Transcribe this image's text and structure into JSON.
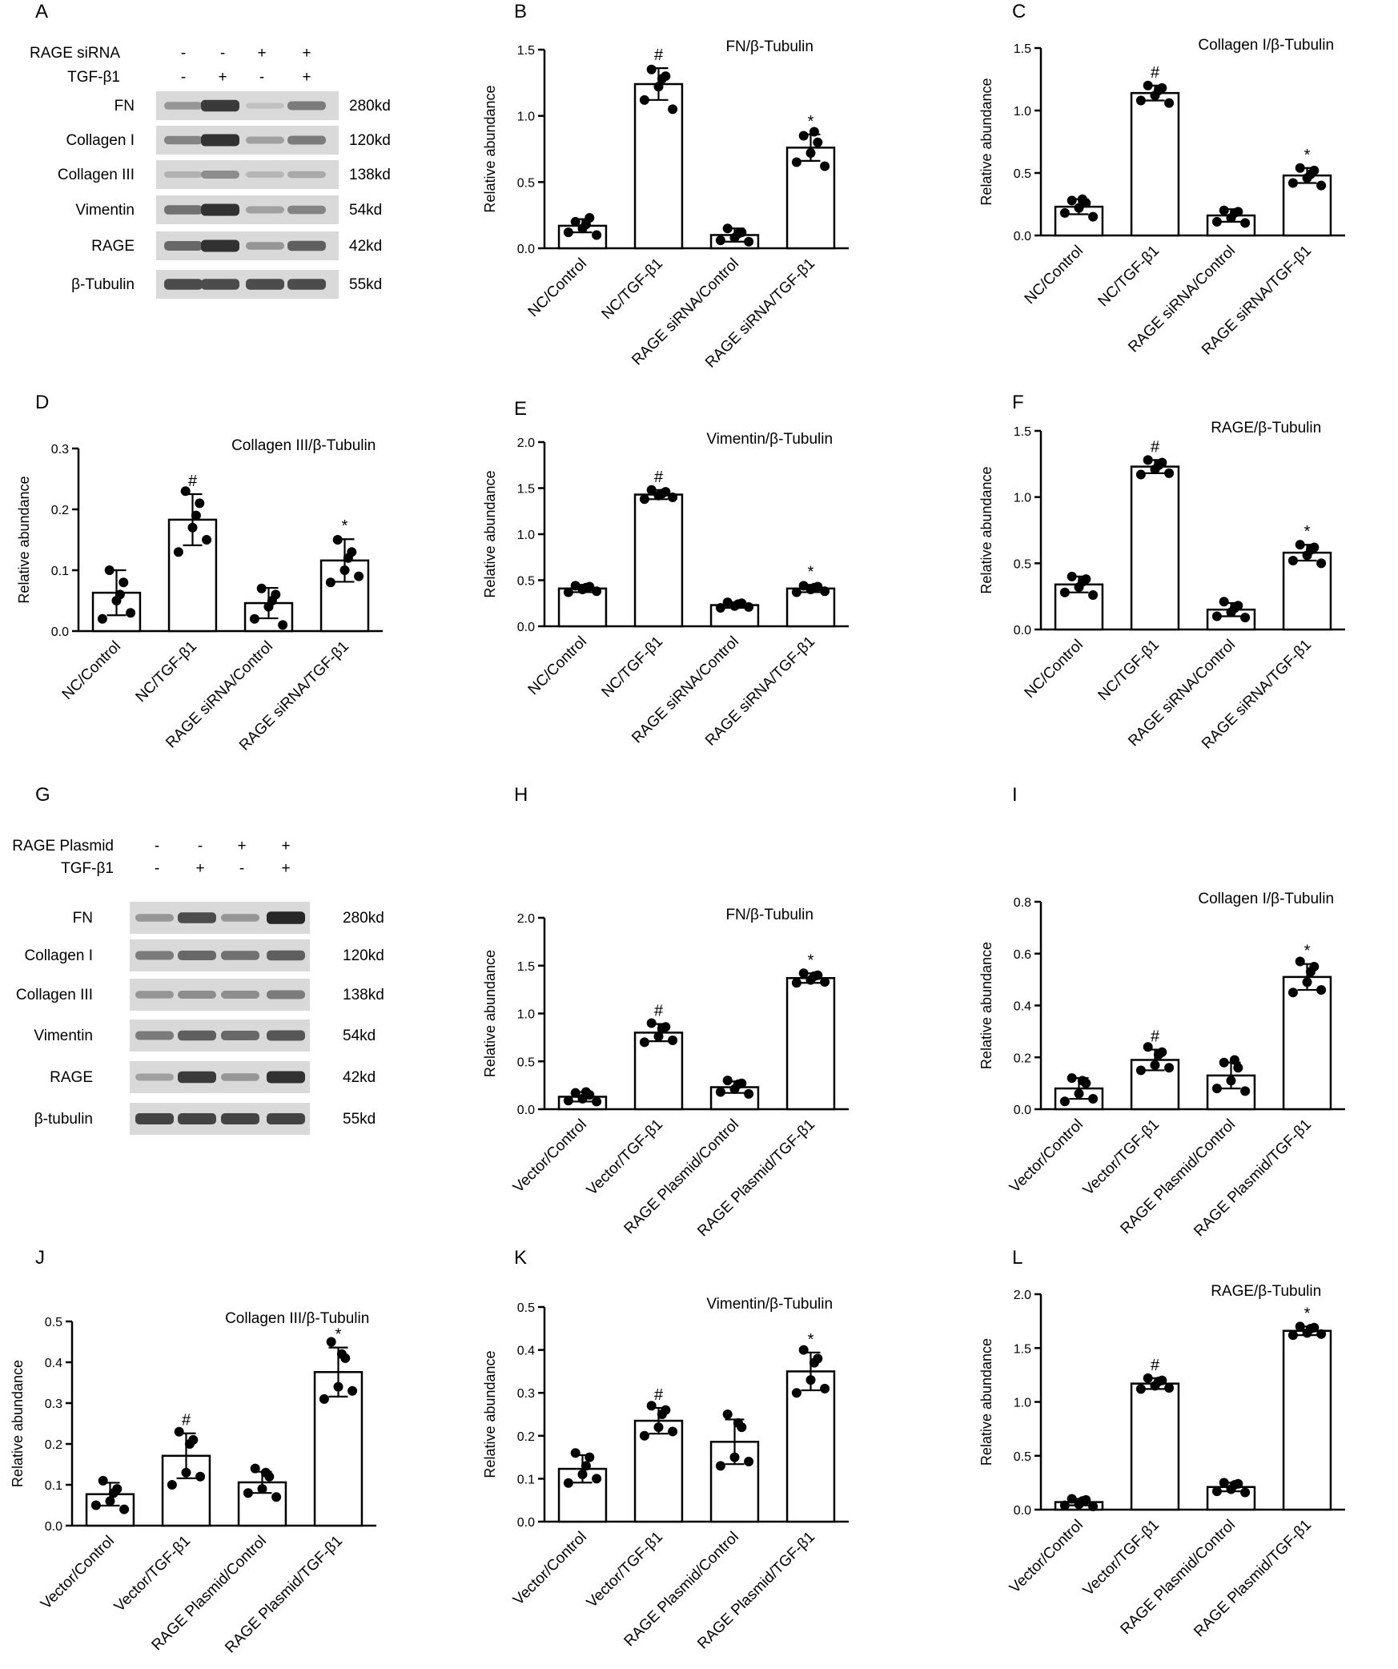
{
  "blots": [
    {
      "panel": "A",
      "header_rows": [
        {
          "label": "RAGE siRNA",
          "signs": [
            "-",
            "-",
            "+",
            "+"
          ]
        },
        {
          "label": "TGF-β1",
          "signs": [
            "-",
            "+",
            "-",
            "+"
          ]
        }
      ],
      "rows": [
        {
          "name": "FN",
          "kd": "280kd",
          "int": [
            0.35,
            0.85,
            0.12,
            0.5
          ]
        },
        {
          "name": "Collagen I",
          "kd": "120kd",
          "int": [
            0.45,
            0.9,
            0.3,
            0.5
          ]
        },
        {
          "name": "Collagen III",
          "kd": "138kd",
          "int": [
            0.2,
            0.4,
            0.18,
            0.25
          ]
        },
        {
          "name": "Vimentin",
          "kd": "54kd",
          "int": [
            0.55,
            0.9,
            0.3,
            0.45
          ]
        },
        {
          "name": "RAGE",
          "kd": "42kd",
          "int": [
            0.6,
            0.9,
            0.35,
            0.65
          ]
        },
        {
          "name": "β-Tubulin",
          "kd": "55kd",
          "int": [
            0.75,
            0.75,
            0.75,
            0.75
          ]
        }
      ]
    },
    {
      "panel": "G",
      "header_rows": [
        {
          "label": "RAGE Plasmid",
          "signs": [
            "-",
            "-",
            "+",
            "+"
          ]
        },
        {
          "label": "TGF-β1",
          "signs": [
            "-",
            "+",
            "-",
            "+"
          ]
        }
      ],
      "rows": [
        {
          "name": "FN",
          "kd": "280kd",
          "int": [
            0.35,
            0.75,
            0.35,
            0.95
          ]
        },
        {
          "name": "Collagen I",
          "kd": "120kd",
          "int": [
            0.5,
            0.6,
            0.55,
            0.65
          ]
        },
        {
          "name": "Collagen III",
          "kd": "138kd",
          "int": [
            0.35,
            0.4,
            0.4,
            0.5
          ]
        },
        {
          "name": "Vimentin",
          "kd": "54kd",
          "int": [
            0.5,
            0.65,
            0.6,
            0.7
          ]
        },
        {
          "name": "RAGE",
          "kd": "42kd",
          "int": [
            0.3,
            0.85,
            0.35,
            0.9
          ]
        },
        {
          "name": "β-tubulin",
          "kd": "55kd",
          "int": [
            0.8,
            0.8,
            0.8,
            0.8
          ]
        }
      ]
    }
  ],
  "chart_data": [
    {
      "panel": "B",
      "type": "bar",
      "title": "FN/β-Tubulin",
      "ylabel": "Relative abundance",
      "ylim": [
        0,
        1.5
      ],
      "yticks": [
        0,
        0.5,
        1.0,
        1.5
      ],
      "tick_labels": [
        "0.0",
        "0.5",
        "1.0",
        "1.5"
      ],
      "categories": [
        "NC/Control",
        "NC/TGF-β1",
        "RAGE siRNA/Control",
        "RAGE siRNA/TGF-β1"
      ],
      "values": [
        0.17,
        1.24,
        0.1,
        0.76
      ],
      "errors": [
        0.05,
        0.12,
        0.05,
        0.1
      ],
      "markers": [
        "",
        "#",
        "",
        "*"
      ],
      "points": [
        [
          0.12,
          0.2,
          0.15,
          0.23,
          0.1,
          0.18
        ],
        [
          1.12,
          1.35,
          1.22,
          1.3,
          1.05,
          1.28
        ],
        [
          0.06,
          0.15,
          0.08,
          0.12,
          0.05,
          0.11
        ],
        [
          0.65,
          0.85,
          0.72,
          0.8,
          0.62,
          0.88
        ]
      ]
    },
    {
      "panel": "C",
      "type": "bar",
      "title": "Collagen I/β-Tubulin",
      "ylabel": "Relative abundance",
      "ylim": [
        0,
        1.5
      ],
      "yticks": [
        0,
        0.5,
        1.0,
        1.5
      ],
      "tick_labels": [
        "0.0",
        "0.5",
        "1.0",
        "1.5"
      ],
      "categories": [
        "NC/Control",
        "NC/TGF-β1",
        "RAGE siRNA/Control",
        "RAGE siRNA/TGF-β1"
      ],
      "values": [
        0.23,
        1.14,
        0.16,
        0.48
      ],
      "errors": [
        0.06,
        0.06,
        0.05,
        0.06
      ],
      "markers": [
        "",
        "#",
        "",
        "*"
      ],
      "points": [
        [
          0.18,
          0.28,
          0.22,
          0.26,
          0.15,
          0.29
        ],
        [
          1.08,
          1.2,
          1.12,
          1.18,
          1.06,
          1.16
        ],
        [
          0.11,
          0.2,
          0.14,
          0.19,
          0.1,
          0.18
        ],
        [
          0.42,
          0.54,
          0.46,
          0.52,
          0.4,
          0.49
        ]
      ]
    },
    {
      "panel": "D",
      "type": "bar",
      "title": "Collagen III/β-Tubulin",
      "ylabel": "Relative abundance",
      "ylim": [
        0,
        0.3
      ],
      "yticks": [
        0,
        0.1,
        0.2,
        0.3
      ],
      "tick_labels": [
        "0.0",
        "0.1",
        "0.2",
        "0.3"
      ],
      "categories": [
        "NC/Control",
        "NC/TGF-β1",
        "RAGE siRNA/Control",
        "RAGE siRNA/TGF-β1"
      ],
      "values": [
        0.063,
        0.183,
        0.046,
        0.116
      ],
      "errors": [
        0.037,
        0.042,
        0.025,
        0.035
      ],
      "markers": [
        "",
        "#",
        "",
        "*"
      ],
      "points": [
        [
          0.02,
          0.1,
          0.05,
          0.08,
          0.03,
          0.06
        ],
        [
          0.13,
          0.23,
          0.17,
          0.21,
          0.15,
          0.19
        ],
        [
          0.02,
          0.07,
          0.04,
          0.06,
          0.01,
          0.05
        ],
        [
          0.08,
          0.15,
          0.1,
          0.13,
          0.09,
          0.12
        ]
      ]
    },
    {
      "panel": "E",
      "type": "bar",
      "title": "Vimentin/β-Tubulin",
      "ylabel": "Relative abundance",
      "ylim": [
        0,
        2.0
      ],
      "yticks": [
        0,
        0.5,
        1.0,
        1.5,
        2.0
      ],
      "tick_labels": [
        "0.0",
        "0.5",
        "1.0",
        "1.5",
        "2.0"
      ],
      "categories": [
        "NC/Control",
        "NC/TGF-β1",
        "RAGE siRNA/Control",
        "RAGE siRNA/TGF-β1"
      ],
      "values": [
        0.41,
        1.43,
        0.23,
        0.41
      ],
      "errors": [
        0.04,
        0.05,
        0.03,
        0.04
      ],
      "markers": [
        "",
        "#",
        "",
        "*"
      ],
      "points": [
        [
          0.37,
          0.44,
          0.4,
          0.43,
          0.38,
          0.42
        ],
        [
          1.38,
          1.48,
          1.42,
          1.46,
          1.4,
          1.44
        ],
        [
          0.2,
          0.26,
          0.22,
          0.25,
          0.21,
          0.24
        ],
        [
          0.37,
          0.44,
          0.4,
          0.43,
          0.38,
          0.42
        ]
      ]
    },
    {
      "panel": "F",
      "type": "bar",
      "title": "RAGE/β-Tubulin",
      "ylabel": "Relative abundance",
      "ylim": [
        0,
        1.5
      ],
      "yticks": [
        0,
        0.5,
        1.0,
        1.5
      ],
      "tick_labels": [
        "0.0",
        "0.5",
        "1.0",
        "1.5"
      ],
      "categories": [
        "NC/Control",
        "NC/TGF-β1",
        "RAGE siRNA/Control",
        "RAGE siRNA/TGF-β1"
      ],
      "values": [
        0.34,
        1.23,
        0.15,
        0.58
      ],
      "errors": [
        0.06,
        0.05,
        0.05,
        0.06
      ],
      "markers": [
        "",
        "#",
        "",
        "*"
      ],
      "points": [
        [
          0.28,
          0.4,
          0.32,
          0.38,
          0.26,
          0.36
        ],
        [
          1.17,
          1.28,
          1.21,
          1.26,
          1.18,
          1.24
        ],
        [
          0.1,
          0.21,
          0.13,
          0.18,
          0.09,
          0.16
        ],
        [
          0.52,
          0.64,
          0.56,
          0.62,
          0.5,
          0.6
        ]
      ]
    },
    {
      "panel": "H",
      "type": "bar",
      "title": "FN/β-Tubulin",
      "ylabel": "Relative abundance",
      "ylim": [
        0,
        2.0
      ],
      "yticks": [
        0,
        0.5,
        1.0,
        1.5,
        2.0
      ],
      "tick_labels": [
        "0.0",
        "0.5",
        "1.0",
        "1.5",
        "2.0"
      ],
      "categories": [
        "Vector/Control",
        "Vector/TGF-β1",
        "RAGE Plasmid/Control",
        "RAGE Plasmid/TGF-β1"
      ],
      "values": [
        0.13,
        0.8,
        0.23,
        1.37
      ],
      "errors": [
        0.05,
        0.09,
        0.06,
        0.05
      ],
      "markers": [
        "",
        "#",
        "",
        "*"
      ],
      "points": [
        [
          0.09,
          0.17,
          0.11,
          0.15,
          0.08,
          0.18
        ],
        [
          0.7,
          0.9,
          0.76,
          0.86,
          0.72,
          0.84
        ],
        [
          0.18,
          0.3,
          0.21,
          0.27,
          0.16,
          0.26
        ],
        [
          1.32,
          1.42,
          1.35,
          1.4,
          1.33,
          1.39
        ]
      ]
    },
    {
      "panel": "I",
      "type": "bar",
      "title": "Collagen I/β-Tubulin",
      "ylabel": "Relative abundance",
      "ylim": [
        0,
        0.8
      ],
      "yticks": [
        0,
        0.2,
        0.4,
        0.6,
        0.8
      ],
      "tick_labels": [
        "0.0",
        "0.2",
        "0.4",
        "0.6",
        "0.8"
      ],
      "categories": [
        "Vector/Control",
        "Vector/TGF-β1",
        "RAGE Plasmid/Control",
        "RAGE Plasmid/TGF-β1"
      ],
      "values": [
        0.08,
        0.19,
        0.13,
        0.51
      ],
      "errors": [
        0.04,
        0.04,
        0.05,
        0.05
      ],
      "markers": [
        "",
        "#",
        "",
        "*"
      ],
      "points": [
        [
          0.03,
          0.12,
          0.06,
          0.1,
          0.04,
          0.11
        ],
        [
          0.15,
          0.24,
          0.17,
          0.22,
          0.16,
          0.21
        ],
        [
          0.08,
          0.18,
          0.11,
          0.16,
          0.07,
          0.19
        ],
        [
          0.45,
          0.57,
          0.49,
          0.55,
          0.46,
          0.53
        ]
      ]
    },
    {
      "panel": "J",
      "type": "bar",
      "title": "Collagen III/β-Tubulin",
      "ylabel": "Relative abundance",
      "ylim": [
        0,
        0.5
      ],
      "yticks": [
        0,
        0.1,
        0.2,
        0.3,
        0.4,
        0.5
      ],
      "tick_labels": [
        "0.0",
        "0.1",
        "0.2",
        "0.3",
        "0.4",
        "0.5"
      ],
      "categories": [
        "Vector/Control",
        "Vector/TGF-β1",
        "RAGE Plasmid/Control",
        "RAGE Plasmid/TGF-β1"
      ],
      "values": [
        0.077,
        0.171,
        0.106,
        0.376
      ],
      "errors": [
        0.028,
        0.055,
        0.026,
        0.06
      ],
      "markers": [
        "",
        "#",
        "",
        "*"
      ],
      "points": [
        [
          0.05,
          0.11,
          0.06,
          0.09,
          0.04,
          0.08
        ],
        [
          0.1,
          0.23,
          0.13,
          0.21,
          0.12,
          0.2
        ],
        [
          0.08,
          0.14,
          0.09,
          0.12,
          0.07,
          0.13
        ],
        [
          0.31,
          0.45,
          0.34,
          0.41,
          0.33,
          0.42
        ]
      ]
    },
    {
      "panel": "K",
      "type": "bar",
      "title": "Vimentin/β-Tubulin",
      "ylabel": "Relative abundance",
      "ylim": [
        0,
        0.5
      ],
      "yticks": [
        0,
        0.1,
        0.2,
        0.3,
        0.4,
        0.5
      ],
      "tick_labels": [
        "0.0",
        "0.1",
        "0.2",
        "0.3",
        "0.4",
        "0.5"
      ],
      "categories": [
        "Vector/Control",
        "Vector/TGF-β1",
        "RAGE Plasmid/Control",
        "RAGE Plasmid/TGF-β1"
      ],
      "values": [
        0.123,
        0.235,
        0.186,
        0.35
      ],
      "errors": [
        0.032,
        0.03,
        0.052,
        0.044
      ],
      "markers": [
        "",
        "#",
        "",
        "*"
      ],
      "points": [
        [
          0.09,
          0.16,
          0.11,
          0.15,
          0.1,
          0.13
        ],
        [
          0.2,
          0.27,
          0.22,
          0.26,
          0.21,
          0.25
        ],
        [
          0.13,
          0.25,
          0.15,
          0.22,
          0.14,
          0.23
        ],
        [
          0.3,
          0.4,
          0.33,
          0.38,
          0.31,
          0.37
        ]
      ]
    },
    {
      "panel": "L",
      "type": "bar",
      "title": "RAGE/β-Tubulin",
      "ylabel": "Relative abundance",
      "ylim": [
        0,
        2.0
      ],
      "yticks": [
        0,
        0.5,
        1.0,
        1.5,
        2.0
      ],
      "tick_labels": [
        "0.0",
        "0.5",
        "1.0",
        "1.5",
        "2.0"
      ],
      "categories": [
        "Vector/Control",
        "Vector/TGF-β1",
        "RAGE Plasmid/Control",
        "RAGE Plasmid/TGF-β1"
      ],
      "values": [
        0.07,
        1.17,
        0.21,
        1.66
      ],
      "errors": [
        0.03,
        0.05,
        0.04,
        0.04
      ],
      "markers": [
        "",
        "#",
        "",
        "*"
      ],
      "points": [
        [
          0.04,
          0.1,
          0.05,
          0.09,
          0.03,
          0.08
        ],
        [
          1.12,
          1.22,
          1.15,
          1.2,
          1.13,
          1.19
        ],
        [
          0.17,
          0.25,
          0.19,
          0.24,
          0.16,
          0.23
        ],
        [
          1.62,
          1.7,
          1.64,
          1.69,
          1.63,
          1.68
        ]
      ]
    }
  ]
}
